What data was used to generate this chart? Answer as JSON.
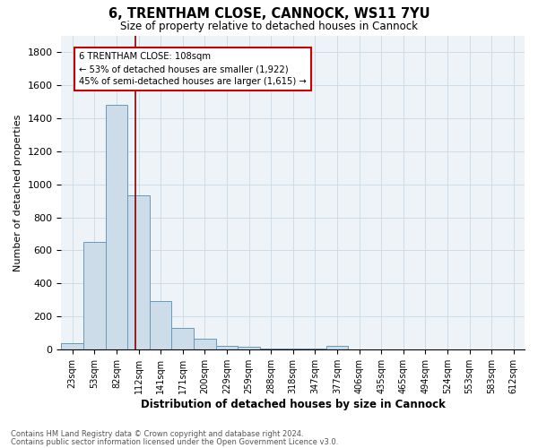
{
  "title1": "6, TRENTHAM CLOSE, CANNOCK, WS11 7YU",
  "title2": "Size of property relative to detached houses in Cannock",
  "xlabel": "Distribution of detached houses by size in Cannock",
  "ylabel": "Number of detached properties",
  "bin_labels": [
    "23sqm",
    "53sqm",
    "82sqm",
    "112sqm",
    "141sqm",
    "171sqm",
    "200sqm",
    "229sqm",
    "259sqm",
    "288sqm",
    "318sqm",
    "347sqm",
    "377sqm",
    "406sqm",
    "435sqm",
    "465sqm",
    "494sqm",
    "524sqm",
    "553sqm",
    "583sqm",
    "612sqm"
  ],
  "bar_values": [
    35,
    650,
    1480,
    935,
    295,
    130,
    65,
    22,
    18,
    5,
    5,
    5,
    22,
    0,
    0,
    0,
    0,
    0,
    0,
    0,
    0
  ],
  "bar_color": "#ccdce8",
  "bar_edge_color": "#6699bb",
  "vline_color": "#880000",
  "annotation_line1": "6 TRENTHAM CLOSE: 108sqm",
  "annotation_line2": "← 53% of detached houses are smaller (1,922)",
  "annotation_line3": "45% of semi-detached houses are larger (1,615) →",
  "annotation_box_color": "#cc0000",
  "footnote1": "Contains HM Land Registry data © Crown copyright and database right 2024.",
  "footnote2": "Contains public sector information licensed under the Open Government Licence v3.0.",
  "ylim": [
    0,
    1900
  ],
  "yticks": [
    0,
    200,
    400,
    600,
    800,
    1000,
    1200,
    1400,
    1600,
    1800
  ],
  "grid_color": "#ccdde8",
  "bg_color": "#eef3f7",
  "title1_fontsize": 10.5,
  "title2_fontsize": 8.5
}
